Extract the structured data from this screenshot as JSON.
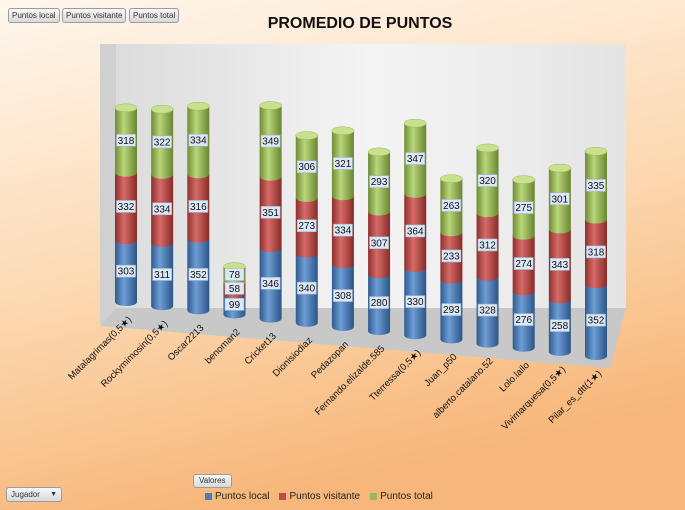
{
  "buttons": {
    "local": "Puntos local",
    "visitante": "Puntos visitante",
    "total": "Puntos total",
    "valores": "Valores",
    "jugador": "Jugador"
  },
  "chart_data": {
    "type": "bar",
    "stacked": true,
    "title": "PROMEDIO DE PUNTOS",
    "categories": [
      "Matalagrimas(0,5★)",
      "Rockymimosin(0,5★)",
      "Oscar2213",
      "benoman2",
      "Cricket13",
      "Dionisiodiaz",
      "Pedazopan",
      "Fernando.elizalde.585",
      "Tterressa(0,5★)",
      "Juan_p50",
      "alberto.catalano.52",
      "Lolo.lailo",
      "Vivimarquesa(0,5★)",
      "Pilar_es_dtt(1★)"
    ],
    "series": [
      {
        "name": "Puntos local",
        "color": "#4a7ebb",
        "values": [
          303,
          311,
          352,
          99,
          346,
          340,
          308,
          280,
          330,
          293,
          328,
          276,
          258,
          352
        ]
      },
      {
        "name": "Puntos visitante",
        "color": "#be4b48",
        "values": [
          332,
          334,
          316,
          58,
          351,
          273,
          334,
          307,
          364,
          233,
          312,
          274,
          343,
          318
        ]
      },
      {
        "name": "Puntos total",
        "color": "#98b954",
        "values": [
          318,
          322,
          334,
          78,
          349,
          306,
          321,
          293,
          347,
          263,
          320,
          275,
          301,
          335
        ]
      }
    ],
    "legend": "bottom"
  }
}
